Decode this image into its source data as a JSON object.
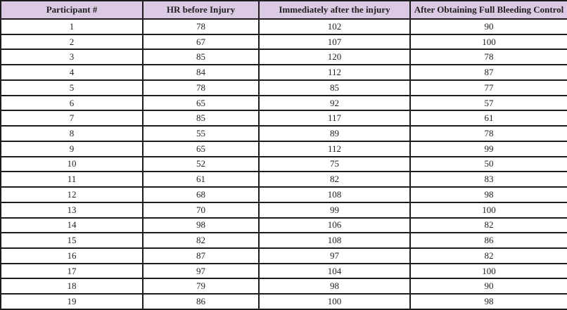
{
  "colors": {
    "header_bg": "#dccae4",
    "border": "#1c1c1c",
    "header_text": "#1f1f1f",
    "body_text": "#1f1f1f"
  },
  "table": {
    "columns": [
      "Participant #",
      "HR before Injury",
      "Immediately after the injury",
      "After Obtaining Full Bleeding Control"
    ],
    "rows": [
      [
        1,
        78,
        102,
        90
      ],
      [
        2,
        67,
        107,
        100
      ],
      [
        3,
        85,
        120,
        78
      ],
      [
        4,
        84,
        112,
        87
      ],
      [
        5,
        78,
        85,
        77
      ],
      [
        6,
        65,
        92,
        57
      ],
      [
        7,
        85,
        117,
        61
      ],
      [
        8,
        55,
        89,
        78
      ],
      [
        9,
        65,
        112,
        99
      ],
      [
        10,
        52,
        75,
        50
      ],
      [
        11,
        61,
        82,
        83
      ],
      [
        12,
        68,
        108,
        98
      ],
      [
        13,
        70,
        99,
        100
      ],
      [
        14,
        98,
        106,
        82
      ],
      [
        15,
        82,
        108,
        86
      ],
      [
        16,
        87,
        97,
        82
      ],
      [
        17,
        97,
        104,
        100
      ],
      [
        18,
        79,
        98,
        90
      ],
      [
        19,
        86,
        100,
        98
      ]
    ]
  },
  "chart_data": {
    "type": "table",
    "title": "",
    "columns": [
      "Participant #",
      "HR before Injury",
      "Immediately after the injury",
      "After Obtaining Full Bleeding Control"
    ],
    "series": [
      {
        "name": "HR before Injury",
        "values": [
          78,
          67,
          85,
          84,
          78,
          65,
          85,
          55,
          65,
          52,
          61,
          68,
          70,
          98,
          82,
          87,
          97,
          79,
          86
        ]
      },
      {
        "name": "Immediately after the injury",
        "values": [
          102,
          107,
          120,
          112,
          85,
          92,
          117,
          89,
          112,
          75,
          82,
          108,
          99,
          106,
          108,
          97,
          104,
          98,
          100
        ]
      },
      {
        "name": "After Obtaining Full Bleeding Control",
        "values": [
          90,
          100,
          78,
          87,
          77,
          57,
          61,
          78,
          99,
          50,
          83,
          98,
          100,
          82,
          86,
          82,
          100,
          90,
          98
        ]
      }
    ],
    "categories": [
      1,
      2,
      3,
      4,
      5,
      6,
      7,
      8,
      9,
      10,
      11,
      12,
      13,
      14,
      15,
      16,
      17,
      18,
      19
    ]
  }
}
